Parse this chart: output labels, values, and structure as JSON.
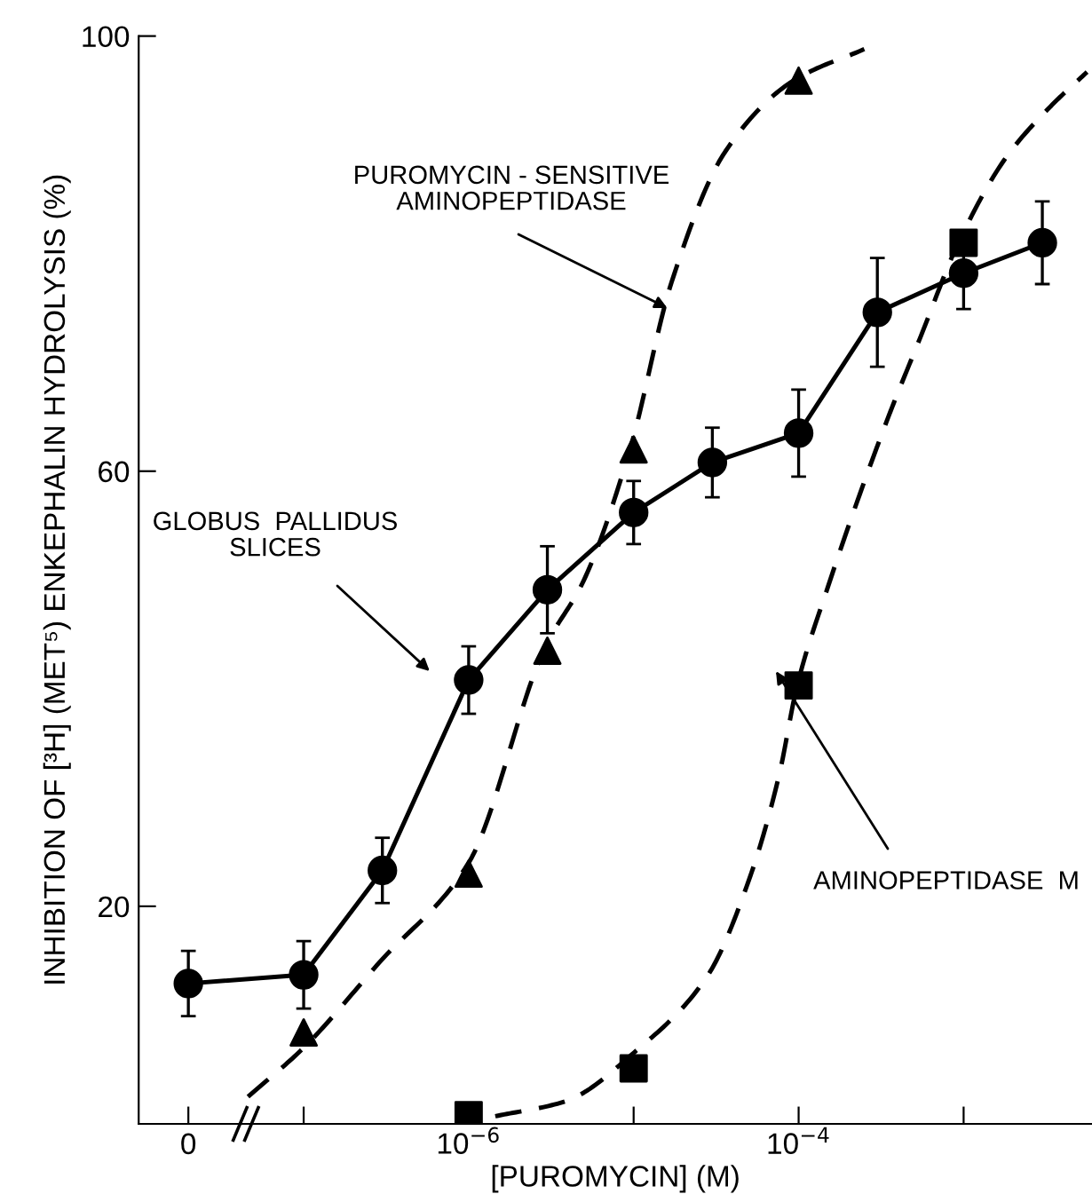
{
  "chart_data": {
    "type": "line",
    "xlabel": "[PUROMYCIN] (M)",
    "ylabel": "INHIBITION OF [³H] (MET⁵) ENKEPHALIN HYDROLYSIS (%)",
    "log": "x",
    "xlim": [
      1e-08,
      0.006
    ],
    "ylim": [
      0,
      100
    ],
    "xticks": [
      {
        "value": 2e-08,
        "label": "0"
      },
      {
        "value": 1e-07,
        "label": null
      },
      {
        "value": 1e-06,
        "label": "10$^{−6}$"
      },
      {
        "value": 1e-05,
        "label": null
      },
      {
        "value": 0.0001,
        "label": "10$^{−4}$"
      },
      {
        "value": 0.001,
        "label": null
      }
    ],
    "yticks": [
      20,
      60,
      100
    ],
    "grid": false,
    "series": [
      {
        "color": "#000000",
        "marker": "circle",
        "line_style": "solid",
        "x": [
          2e-08,
          1e-07,
          3e-07,
          1e-06,
          3e-06,
          1e-05,
          3e-05,
          0.0001,
          0.0003,
          0.001,
          0.003
        ],
        "values": [
          12.9,
          13.7,
          23.3,
          40.8,
          49.1,
          56.2,
          60.8,
          63.5,
          74.6,
          78.2,
          81.0
        ],
        "errors": [
          3,
          3.1,
          3,
          3.1,
          4,
          2.9,
          3.2,
          4,
          5,
          3.3,
          3.8
        ]
      },
      {
        "type": "scatter",
        "color": "#000000",
        "marker": "triangle",
        "x": [
          1e-07,
          1e-06,
          3e-06,
          1e-05,
          0.0001
        ],
        "values": [
          8.4,
          23.0,
          43.5,
          62.0,
          95.9
        ]
      },
      {
        "type": "scatter",
        "color": "#000000",
        "marker": "square",
        "x": [
          1e-06,
          1e-05,
          0.0001,
          0.001
        ],
        "values": [
          0.8,
          5.1,
          40.3,
          81.0
        ]
      },
      {
        "color": "#000000",
        "marker": "none",
        "line_style": "dashed",
        "x": [
          4.6e-08,
          1e-07,
          2.9e-07,
          1e-06,
          2.9e-06,
          5e-06,
          9.5e-06,
          1.7e-05,
          3.6e-05,
          9.3e-05,
          0.00025
        ],
        "values": [
          2.5,
          7,
          14.9,
          24,
          43.8,
          50,
          62,
          77.4,
          89.4,
          95.9,
          98.8
        ]
      },
      {
        "color": "#000000",
        "marker": "none",
        "line_style": "dashed",
        "x": [
          1.45e-06,
          3.9e-06,
          1.05e-05,
          2.8e-05,
          5.1e-05,
          7.6e-05,
          9.8e-05,
          0.00015,
          0.00034,
          0.00055,
          0.00093,
          0.0018,
          0.0033,
          0.0056
        ],
        "values": [
          0.7,
          2.1,
          6.8,
          13.6,
          22.8,
          32,
          40.3,
          49.3,
          64.5,
          72.4,
          81,
          88.8,
          93.4,
          96.7
        ]
      }
    ],
    "annotations": [
      {
        "text": "PUROMYCIN - SENSITIVE\nAMINOPEPTIDASE",
        "x": 1.6e-05,
        "y": 75
      },
      "GLOBUS  PALLIDUS\nSLICES",
      "AMINOPEPTIDASE  M"
    ]
  }
}
